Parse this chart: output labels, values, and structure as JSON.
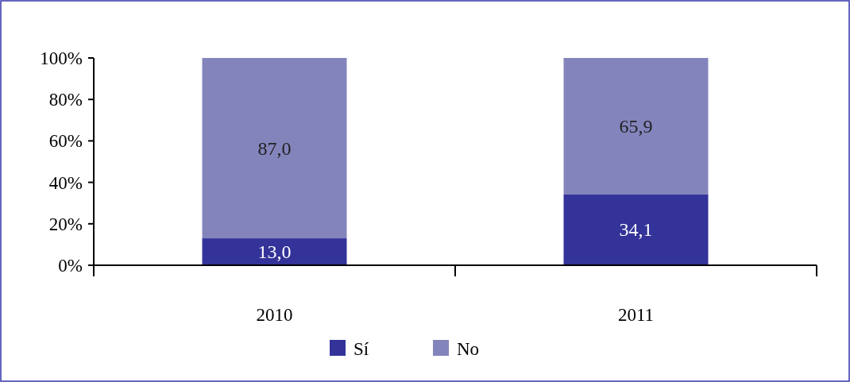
{
  "chart_data": {
    "type": "bar",
    "stacked": true,
    "categories": [
      "2010",
      "2011"
    ],
    "series": [
      {
        "name": "Sí",
        "color": "#333399",
        "values": [
          13.0,
          34.1
        ],
        "value_labels": [
          "13,0",
          "34,1"
        ]
      },
      {
        "name": "No",
        "color": "#8484bd",
        "values": [
          87.0,
          65.9
        ],
        "value_labels": [
          "87,0",
          "65,9"
        ]
      }
    ],
    "ylim": [
      0,
      100
    ],
    "yticks": [
      {
        "value": 0,
        "label": "0%"
      },
      {
        "value": 20,
        "label": "20%"
      },
      {
        "value": 40,
        "label": "40%"
      },
      {
        "value": 60,
        "label": "60%"
      },
      {
        "value": 80,
        "label": "80%"
      },
      {
        "value": 100,
        "label": "100%"
      }
    ],
    "grid": false,
    "legend": "bottom"
  }
}
